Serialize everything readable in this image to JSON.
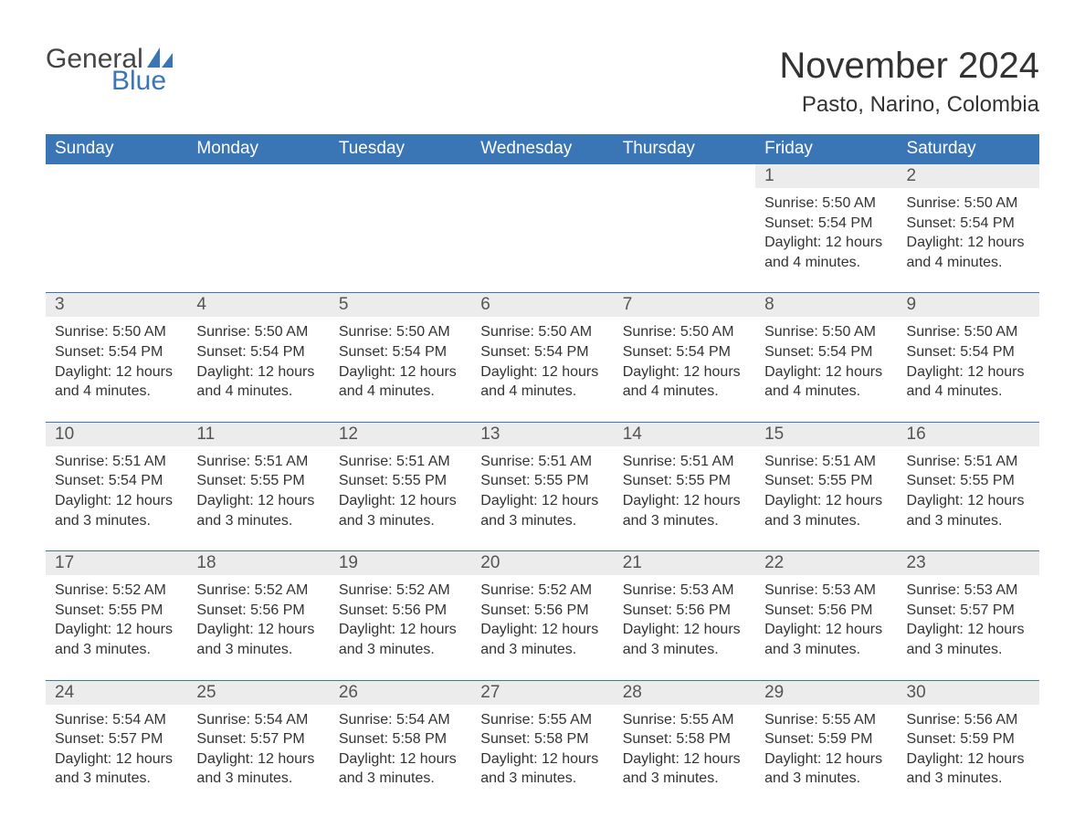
{
  "logo": {
    "word1": "General",
    "word2": "Blue",
    "text_color": "#444444",
    "accent_color": "#3a75b5"
  },
  "title": "November 2024",
  "location": "Pasto, Narino, Colombia",
  "header_bg": "#3a75b5",
  "daynum_bg": "#ececec",
  "border_color": "#3a75b5",
  "background_color": "#ffffff",
  "text_color": "#333333",
  "title_fontsize": 40,
  "location_fontsize": 24,
  "header_fontsize": 19,
  "cell_fontsize": 16,
  "columns": [
    "Sunday",
    "Monday",
    "Tuesday",
    "Wednesday",
    "Thursday",
    "Friday",
    "Saturday"
  ],
  "weeks": [
    [
      null,
      null,
      null,
      null,
      null,
      {
        "n": "1",
        "sunrise": "Sunrise: 5:50 AM",
        "sunset": "Sunset: 5:54 PM",
        "daylight": "Daylight: 12 hours and 4 minutes."
      },
      {
        "n": "2",
        "sunrise": "Sunrise: 5:50 AM",
        "sunset": "Sunset: 5:54 PM",
        "daylight": "Daylight: 12 hours and 4 minutes."
      }
    ],
    [
      {
        "n": "3",
        "sunrise": "Sunrise: 5:50 AM",
        "sunset": "Sunset: 5:54 PM",
        "daylight": "Daylight: 12 hours and 4 minutes."
      },
      {
        "n": "4",
        "sunrise": "Sunrise: 5:50 AM",
        "sunset": "Sunset: 5:54 PM",
        "daylight": "Daylight: 12 hours and 4 minutes."
      },
      {
        "n": "5",
        "sunrise": "Sunrise: 5:50 AM",
        "sunset": "Sunset: 5:54 PM",
        "daylight": "Daylight: 12 hours and 4 minutes."
      },
      {
        "n": "6",
        "sunrise": "Sunrise: 5:50 AM",
        "sunset": "Sunset: 5:54 PM",
        "daylight": "Daylight: 12 hours and 4 minutes."
      },
      {
        "n": "7",
        "sunrise": "Sunrise: 5:50 AM",
        "sunset": "Sunset: 5:54 PM",
        "daylight": "Daylight: 12 hours and 4 minutes."
      },
      {
        "n": "8",
        "sunrise": "Sunrise: 5:50 AM",
        "sunset": "Sunset: 5:54 PM",
        "daylight": "Daylight: 12 hours and 4 minutes."
      },
      {
        "n": "9",
        "sunrise": "Sunrise: 5:50 AM",
        "sunset": "Sunset: 5:54 PM",
        "daylight": "Daylight: 12 hours and 4 minutes."
      }
    ],
    [
      {
        "n": "10",
        "sunrise": "Sunrise: 5:51 AM",
        "sunset": "Sunset: 5:54 PM",
        "daylight": "Daylight: 12 hours and 3 minutes."
      },
      {
        "n": "11",
        "sunrise": "Sunrise: 5:51 AM",
        "sunset": "Sunset: 5:55 PM",
        "daylight": "Daylight: 12 hours and 3 minutes."
      },
      {
        "n": "12",
        "sunrise": "Sunrise: 5:51 AM",
        "sunset": "Sunset: 5:55 PM",
        "daylight": "Daylight: 12 hours and 3 minutes."
      },
      {
        "n": "13",
        "sunrise": "Sunrise: 5:51 AM",
        "sunset": "Sunset: 5:55 PM",
        "daylight": "Daylight: 12 hours and 3 minutes."
      },
      {
        "n": "14",
        "sunrise": "Sunrise: 5:51 AM",
        "sunset": "Sunset: 5:55 PM",
        "daylight": "Daylight: 12 hours and 3 minutes."
      },
      {
        "n": "15",
        "sunrise": "Sunrise: 5:51 AM",
        "sunset": "Sunset: 5:55 PM",
        "daylight": "Daylight: 12 hours and 3 minutes."
      },
      {
        "n": "16",
        "sunrise": "Sunrise: 5:51 AM",
        "sunset": "Sunset: 5:55 PM",
        "daylight": "Daylight: 12 hours and 3 minutes."
      }
    ],
    [
      {
        "n": "17",
        "sunrise": "Sunrise: 5:52 AM",
        "sunset": "Sunset: 5:55 PM",
        "daylight": "Daylight: 12 hours and 3 minutes."
      },
      {
        "n": "18",
        "sunrise": "Sunrise: 5:52 AM",
        "sunset": "Sunset: 5:56 PM",
        "daylight": "Daylight: 12 hours and 3 minutes."
      },
      {
        "n": "19",
        "sunrise": "Sunrise: 5:52 AM",
        "sunset": "Sunset: 5:56 PM",
        "daylight": "Daylight: 12 hours and 3 minutes."
      },
      {
        "n": "20",
        "sunrise": "Sunrise: 5:52 AM",
        "sunset": "Sunset: 5:56 PM",
        "daylight": "Daylight: 12 hours and 3 minutes."
      },
      {
        "n": "21",
        "sunrise": "Sunrise: 5:53 AM",
        "sunset": "Sunset: 5:56 PM",
        "daylight": "Daylight: 12 hours and 3 minutes."
      },
      {
        "n": "22",
        "sunrise": "Sunrise: 5:53 AM",
        "sunset": "Sunset: 5:56 PM",
        "daylight": "Daylight: 12 hours and 3 minutes."
      },
      {
        "n": "23",
        "sunrise": "Sunrise: 5:53 AM",
        "sunset": "Sunset: 5:57 PM",
        "daylight": "Daylight: 12 hours and 3 minutes."
      }
    ],
    [
      {
        "n": "24",
        "sunrise": "Sunrise: 5:54 AM",
        "sunset": "Sunset: 5:57 PM",
        "daylight": "Daylight: 12 hours and 3 minutes."
      },
      {
        "n": "25",
        "sunrise": "Sunrise: 5:54 AM",
        "sunset": "Sunset: 5:57 PM",
        "daylight": "Daylight: 12 hours and 3 minutes."
      },
      {
        "n": "26",
        "sunrise": "Sunrise: 5:54 AM",
        "sunset": "Sunset: 5:58 PM",
        "daylight": "Daylight: 12 hours and 3 minutes."
      },
      {
        "n": "27",
        "sunrise": "Sunrise: 5:55 AM",
        "sunset": "Sunset: 5:58 PM",
        "daylight": "Daylight: 12 hours and 3 minutes."
      },
      {
        "n": "28",
        "sunrise": "Sunrise: 5:55 AM",
        "sunset": "Sunset: 5:58 PM",
        "daylight": "Daylight: 12 hours and 3 minutes."
      },
      {
        "n": "29",
        "sunrise": "Sunrise: 5:55 AM",
        "sunset": "Sunset: 5:59 PM",
        "daylight": "Daylight: 12 hours and 3 minutes."
      },
      {
        "n": "30",
        "sunrise": "Sunrise: 5:56 AM",
        "sunset": "Sunset: 5:59 PM",
        "daylight": "Daylight: 12 hours and 3 minutes."
      }
    ]
  ]
}
